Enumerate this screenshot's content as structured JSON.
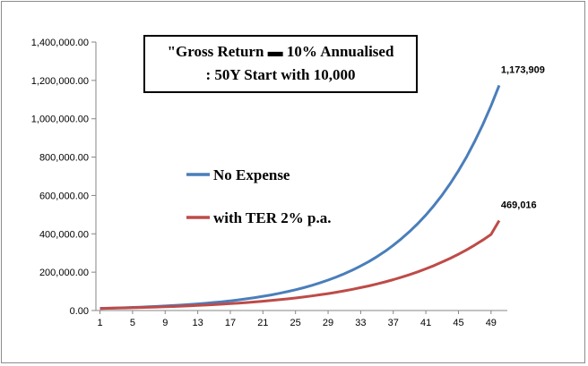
{
  "chart_data": {
    "type": "line",
    "title_lines": [
      "\"Gross Return ▬ 10% Annualised",
      ": 50Y Start with 10,000"
    ],
    "xlabel": "",
    "ylabel": "",
    "x": [
      1,
      2,
      3,
      4,
      5,
      6,
      7,
      8,
      9,
      10,
      11,
      12,
      13,
      14,
      15,
      16,
      17,
      18,
      19,
      20,
      21,
      22,
      23,
      24,
      25,
      26,
      27,
      28,
      29,
      30,
      31,
      32,
      33,
      34,
      35,
      36,
      37,
      38,
      39,
      40,
      41,
      42,
      43,
      44,
      45,
      46,
      47,
      48,
      49,
      50
    ],
    "x_tick_labels": [
      "1",
      "5",
      "9",
      "13",
      "17",
      "21",
      "25",
      "29",
      "33",
      "37",
      "41",
      "45",
      "49"
    ],
    "x_tick_values": [
      1,
      5,
      9,
      13,
      17,
      21,
      25,
      29,
      33,
      37,
      41,
      45,
      49
    ],
    "ylim": [
      0,
      1400000
    ],
    "y_tick_values": [
      0,
      200000,
      400000,
      600000,
      800000,
      1000000,
      1200000,
      1400000
    ],
    "y_tick_labels": [
      "0.00",
      "200,000.00",
      "400,000.00",
      "600,000.00",
      "800,000.00",
      "1,000,000.00",
      "1,200,000.00",
      "1,400,000.00"
    ],
    "grid": false,
    "legend_position": "center-left",
    "series": [
      {
        "name": "No Expense",
        "color": "#4a7ebb",
        "end_label": "1,173,909",
        "values": [
          11000,
          12100,
          13310,
          14641,
          16105,
          17716,
          19487,
          21436,
          23579,
          25937,
          28531,
          31384,
          34523,
          37975,
          41772,
          45950,
          50545,
          55599,
          61159,
          67275,
          74002,
          81403,
          89543,
          98497,
          108347,
          119182,
          131100,
          144210,
          158631,
          174494,
          191943,
          211138,
          232252,
          255477,
          281024,
          309127,
          340039,
          374043,
          411448,
          452593,
          497852,
          547637,
          602401,
          662641,
          728905,
          801795,
          881975,
          970172,
          1067190,
          1173909
        ]
      },
      {
        "name": "with TER 2% p.a.",
        "color": "#be4b48",
        "end_label": "469,016",
        "values": [
          10780,
          11621,
          12527,
          13504,
          14558,
          15693,
          16917,
          18237,
          19659,
          21193,
          22846,
          24628,
          26549,
          28620,
          30852,
          33259,
          35853,
          38650,
          41664,
          44914,
          48417,
          52194,
          56265,
          60654,
          65385,
          70485,
          75983,
          81909,
          88298,
          95186,
          102610,
          110614,
          119242,
          128543,
          138569,
          149377,
          161029,
          173589,
          187129,
          201725,
          217460,
          234422,
          252707,
          272418,
          293665,
          316571,
          341263,
          367880,
          396574,
          469016
        ]
      }
    ]
  }
}
